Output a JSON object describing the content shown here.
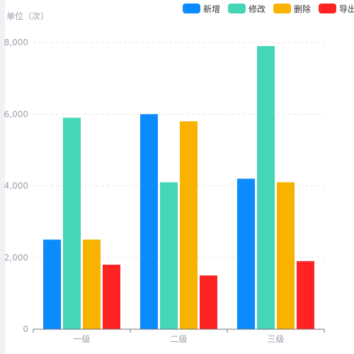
{
  "chart_data": {
    "type": "bar",
    "unit_label": "单位（次）",
    "categories": [
      "一级",
      "二级",
      "三级"
    ],
    "series": [
      {
        "name": "新增",
        "color": "#0a8cff",
        "values": [
          2500,
          6000,
          4200
        ]
      },
      {
        "name": "修改",
        "color": "#45d6b6",
        "values": [
          5900,
          4100,
          7900
        ]
      },
      {
        "name": "删除",
        "color": "#f8b200",
        "values": [
          2500,
          5800,
          4100
        ]
      },
      {
        "name": "导出",
        "color": "#ff2323",
        "values": [
          1800,
          1500,
          1900
        ]
      }
    ],
    "y_ticks": [
      "0",
      "2,000",
      "4,000",
      "6,000",
      "8,000"
    ],
    "ylim": [
      0,
      8000
    ],
    "grid": true,
    "legend_position": "top-right"
  }
}
